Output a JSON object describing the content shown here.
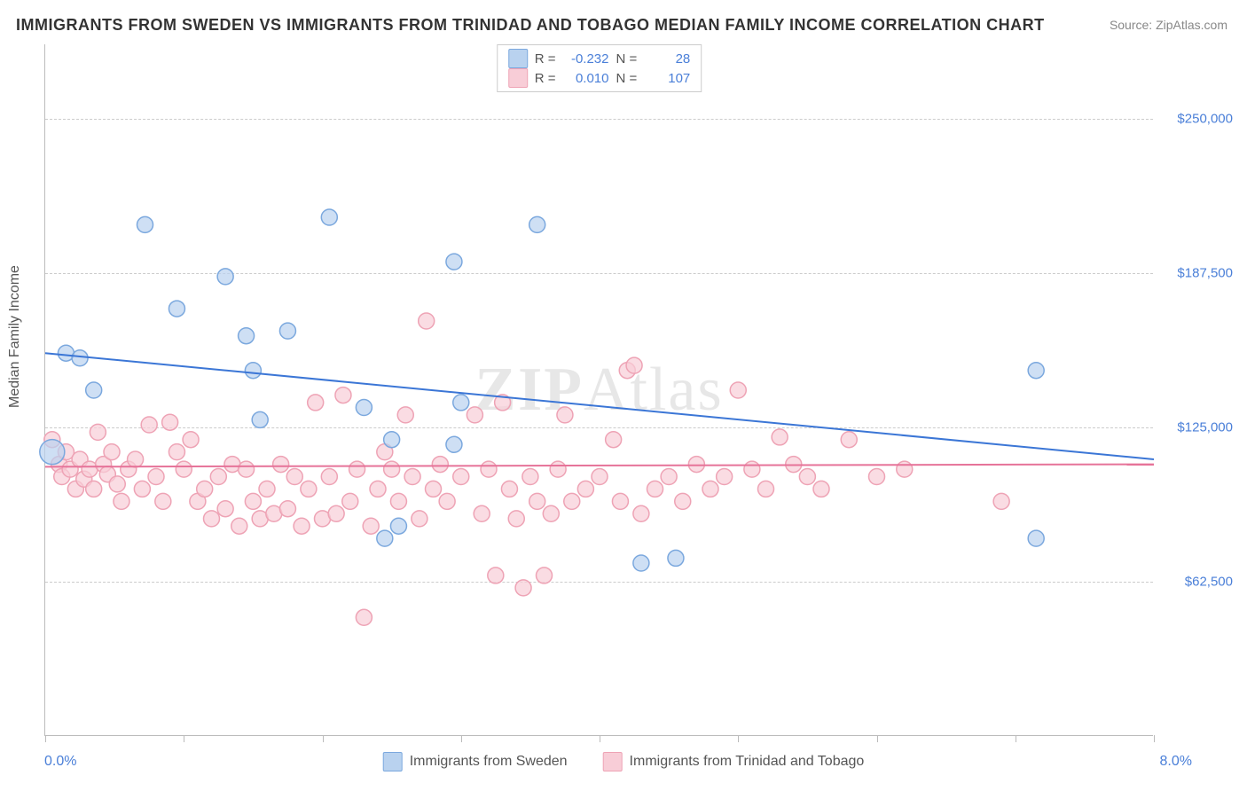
{
  "title": "IMMIGRANTS FROM SWEDEN VS IMMIGRANTS FROM TRINIDAD AND TOBAGO MEDIAN FAMILY INCOME CORRELATION CHART",
  "source": "Source: ZipAtlas.com",
  "ylabel": "Median Family Income",
  "watermark_a": "ZIP",
  "watermark_b": "Atlas",
  "chart": {
    "type": "scatter",
    "xlim": [
      0,
      8
    ],
    "ylim": [
      0,
      280000
    ],
    "x_left_label": "0.0%",
    "x_right_label": "8.0%",
    "yticks": [
      62500,
      125000,
      187500,
      250000
    ],
    "ytick_labels": [
      "$62,500",
      "$125,000",
      "$187,500",
      "$250,000"
    ],
    "xtick_positions": [
      0,
      1,
      2,
      3,
      4,
      5,
      6,
      7,
      8
    ],
    "grid_color": "#cccccc",
    "background_color": "#ffffff",
    "axis_color": "#bbbbbb",
    "label_color": "#4a7fd8",
    "marker_radius": 9,
    "marker_stroke_width": 1.5,
    "line_width": 2,
    "series": [
      {
        "name": "Immigrants from Sweden",
        "fill": "#b9d2ef",
        "stroke": "#7ba8de",
        "line_color": "#3b76d6",
        "R": "-0.232",
        "N": "28",
        "trend": {
          "x1": 0,
          "y1": 155000,
          "x2": 8,
          "y2": 112000
        },
        "points": [
          {
            "x": 0.05,
            "y": 115000,
            "r": 14
          },
          {
            "x": 0.15,
            "y": 155000
          },
          {
            "x": 0.25,
            "y": 153000
          },
          {
            "x": 0.35,
            "y": 140000
          },
          {
            "x": 0.72,
            "y": 207000
          },
          {
            "x": 0.95,
            "y": 173000
          },
          {
            "x": 1.3,
            "y": 186000
          },
          {
            "x": 1.45,
            "y": 162000
          },
          {
            "x": 1.5,
            "y": 148000
          },
          {
            "x": 1.55,
            "y": 128000
          },
          {
            "x": 1.75,
            "y": 164000
          },
          {
            "x": 2.05,
            "y": 210000
          },
          {
            "x": 2.3,
            "y": 133000
          },
          {
            "x": 2.45,
            "y": 80000
          },
          {
            "x": 2.5,
            "y": 120000
          },
          {
            "x": 2.55,
            "y": 85000
          },
          {
            "x": 2.95,
            "y": 192000
          },
          {
            "x": 2.95,
            "y": 118000
          },
          {
            "x": 3.0,
            "y": 135000
          },
          {
            "x": 3.55,
            "y": 207000
          },
          {
            "x": 4.3,
            "y": 70000
          },
          {
            "x": 4.55,
            "y": 72000
          },
          {
            "x": 7.15,
            "y": 148000
          },
          {
            "x": 7.15,
            "y": 80000
          }
        ]
      },
      {
        "name": "Immigrants from Trinidad and Tobago",
        "fill": "#f8cdd7",
        "stroke": "#eea3b5",
        "line_color": "#e67399",
        "R": "0.010",
        "N": "107",
        "trend": {
          "x1": 0,
          "y1": 109000,
          "x2": 8,
          "y2": 110000
        },
        "points": [
          {
            "x": 0.05,
            "y": 120000
          },
          {
            "x": 0.1,
            "y": 110000
          },
          {
            "x": 0.12,
            "y": 105000
          },
          {
            "x": 0.15,
            "y": 115000
          },
          {
            "x": 0.18,
            "y": 108000
          },
          {
            "x": 0.22,
            "y": 100000
          },
          {
            "x": 0.25,
            "y": 112000
          },
          {
            "x": 0.28,
            "y": 104000
          },
          {
            "x": 0.32,
            "y": 108000
          },
          {
            "x": 0.35,
            "y": 100000
          },
          {
            "x": 0.38,
            "y": 123000
          },
          {
            "x": 0.42,
            "y": 110000
          },
          {
            "x": 0.45,
            "y": 106000
          },
          {
            "x": 0.48,
            "y": 115000
          },
          {
            "x": 0.52,
            "y": 102000
          },
          {
            "x": 0.55,
            "y": 95000
          },
          {
            "x": 0.6,
            "y": 108000
          },
          {
            "x": 0.65,
            "y": 112000
          },
          {
            "x": 0.7,
            "y": 100000
          },
          {
            "x": 0.75,
            "y": 126000
          },
          {
            "x": 0.8,
            "y": 105000
          },
          {
            "x": 0.85,
            "y": 95000
          },
          {
            "x": 0.9,
            "y": 127000
          },
          {
            "x": 0.95,
            "y": 115000
          },
          {
            "x": 1.0,
            "y": 108000
          },
          {
            "x": 1.05,
            "y": 120000
          },
          {
            "x": 1.1,
            "y": 95000
          },
          {
            "x": 1.15,
            "y": 100000
          },
          {
            "x": 1.2,
            "y": 88000
          },
          {
            "x": 1.25,
            "y": 105000
          },
          {
            "x": 1.3,
            "y": 92000
          },
          {
            "x": 1.35,
            "y": 110000
          },
          {
            "x": 1.4,
            "y": 85000
          },
          {
            "x": 1.45,
            "y": 108000
          },
          {
            "x": 1.5,
            "y": 95000
          },
          {
            "x": 1.55,
            "y": 88000
          },
          {
            "x": 1.6,
            "y": 100000
          },
          {
            "x": 1.65,
            "y": 90000
          },
          {
            "x": 1.7,
            "y": 110000
          },
          {
            "x": 1.75,
            "y": 92000
          },
          {
            "x": 1.8,
            "y": 105000
          },
          {
            "x": 1.85,
            "y": 85000
          },
          {
            "x": 1.9,
            "y": 100000
          },
          {
            "x": 1.95,
            "y": 135000
          },
          {
            "x": 2.0,
            "y": 88000
          },
          {
            "x": 2.05,
            "y": 105000
          },
          {
            "x": 2.1,
            "y": 90000
          },
          {
            "x": 2.15,
            "y": 138000
          },
          {
            "x": 2.2,
            "y": 95000
          },
          {
            "x": 2.25,
            "y": 108000
          },
          {
            "x": 2.3,
            "y": 48000
          },
          {
            "x": 2.35,
            "y": 85000
          },
          {
            "x": 2.4,
            "y": 100000
          },
          {
            "x": 2.45,
            "y": 115000
          },
          {
            "x": 2.5,
            "y": 108000
          },
          {
            "x": 2.55,
            "y": 95000
          },
          {
            "x": 2.6,
            "y": 130000
          },
          {
            "x": 2.65,
            "y": 105000
          },
          {
            "x": 2.7,
            "y": 88000
          },
          {
            "x": 2.75,
            "y": 168000
          },
          {
            "x": 2.8,
            "y": 100000
          },
          {
            "x": 2.85,
            "y": 110000
          },
          {
            "x": 2.9,
            "y": 95000
          },
          {
            "x": 3.0,
            "y": 105000
          },
          {
            "x": 3.1,
            "y": 130000
          },
          {
            "x": 3.15,
            "y": 90000
          },
          {
            "x": 3.2,
            "y": 108000
          },
          {
            "x": 3.25,
            "y": 65000
          },
          {
            "x": 3.3,
            "y": 135000
          },
          {
            "x": 3.35,
            "y": 100000
          },
          {
            "x": 3.4,
            "y": 88000
          },
          {
            "x": 3.45,
            "y": 60000
          },
          {
            "x": 3.5,
            "y": 105000
          },
          {
            "x": 3.55,
            "y": 95000
          },
          {
            "x": 3.6,
            "y": 65000
          },
          {
            "x": 3.65,
            "y": 90000
          },
          {
            "x": 3.7,
            "y": 108000
          },
          {
            "x": 3.75,
            "y": 130000
          },
          {
            "x": 3.8,
            "y": 95000
          },
          {
            "x": 3.9,
            "y": 100000
          },
          {
            "x": 4.0,
            "y": 105000
          },
          {
            "x": 4.1,
            "y": 120000
          },
          {
            "x": 4.15,
            "y": 95000
          },
          {
            "x": 4.2,
            "y": 148000
          },
          {
            "x": 4.25,
            "y": 150000
          },
          {
            "x": 4.3,
            "y": 90000
          },
          {
            "x": 4.4,
            "y": 100000
          },
          {
            "x": 4.5,
            "y": 105000
          },
          {
            "x": 4.6,
            "y": 95000
          },
          {
            "x": 4.7,
            "y": 110000
          },
          {
            "x": 4.8,
            "y": 100000
          },
          {
            "x": 4.9,
            "y": 105000
          },
          {
            "x": 5.0,
            "y": 140000
          },
          {
            "x": 5.1,
            "y": 108000
          },
          {
            "x": 5.2,
            "y": 100000
          },
          {
            "x": 5.3,
            "y": 121000
          },
          {
            "x": 5.4,
            "y": 110000
          },
          {
            "x": 5.5,
            "y": 105000
          },
          {
            "x": 5.6,
            "y": 100000
          },
          {
            "x": 5.8,
            "y": 120000
          },
          {
            "x": 6.0,
            "y": 105000
          },
          {
            "x": 6.2,
            "y": 108000
          },
          {
            "x": 6.9,
            "y": 95000
          }
        ]
      }
    ]
  },
  "legend_top": {
    "R_label": "R =",
    "N_label": "N ="
  }
}
